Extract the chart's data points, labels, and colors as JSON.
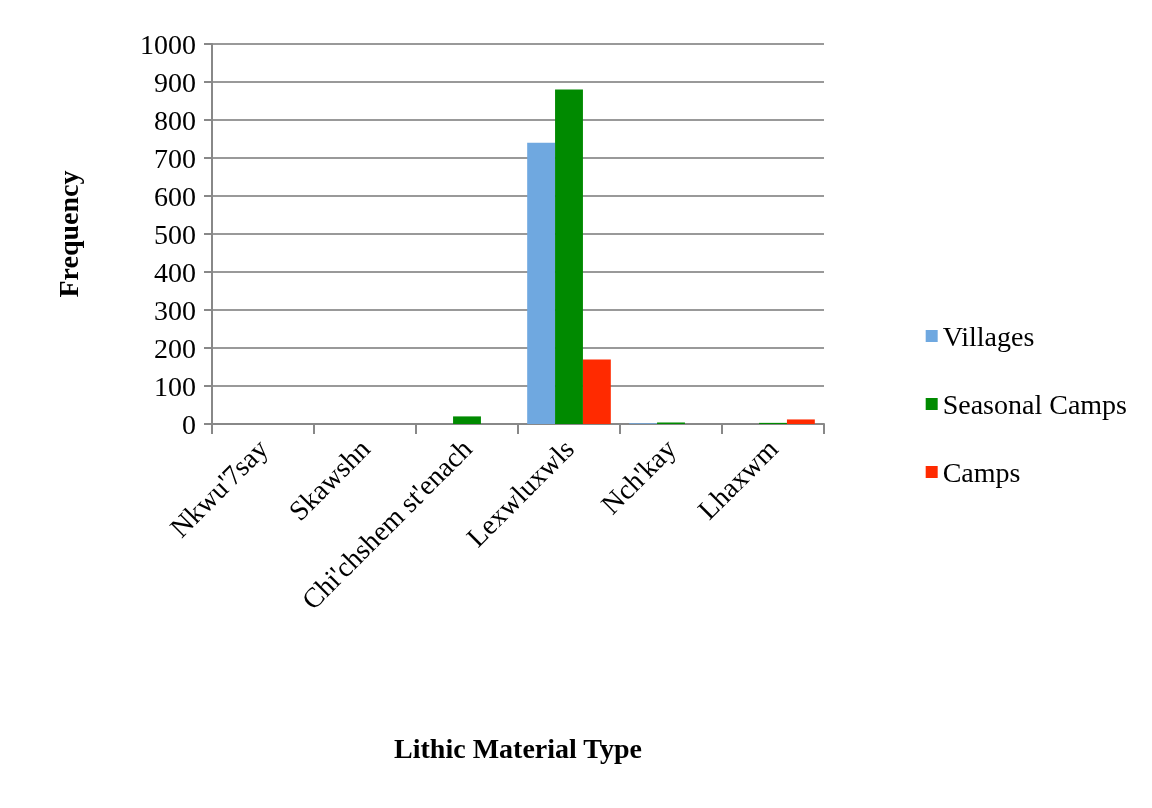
{
  "chart_data": {
    "type": "bar",
    "xlabel": "Lithic Material Type",
    "ylabel": "Frequency",
    "categories": [
      "Nkwu'7say",
      "Skawshn",
      "Chi'chshem st'enach",
      "Lexwluxwls",
      "Nch'kay",
      "Lhaxwm"
    ],
    "series": [
      {
        "name": "Villages",
        "color": "#6fa8e0",
        "values": [
          0,
          0,
          0,
          740,
          2,
          0
        ]
      },
      {
        "name": "Seasonal Camps",
        "color": "#008a00",
        "values": [
          0,
          0,
          20,
          880,
          4,
          3
        ]
      },
      {
        "name": "Camps",
        "color": "#ff2a00",
        "values": [
          0,
          0,
          0,
          170,
          0,
          12
        ]
      }
    ],
    "ylim": [
      0,
      1000
    ],
    "yticks": [
      0,
      100,
      200,
      300,
      400,
      500,
      600,
      700,
      800,
      900,
      1000
    ],
    "grid": "y",
    "legend": "right"
  }
}
